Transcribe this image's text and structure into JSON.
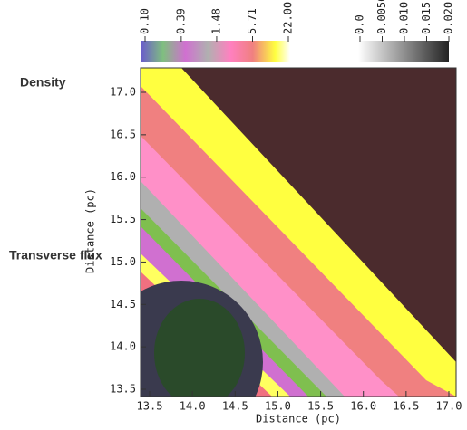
{
  "chart_data": {
    "type": "image",
    "x_label": "Distance (pc)",
    "y_label": "Distance (pc)",
    "side_labels": [
      "Density",
      "Transverse flux"
    ],
    "xlim": [
      13.5,
      17.0
    ],
    "ylim": [
      13.5,
      17.0
    ],
    "xticks": [
      13.5,
      {
        "value": 14,
        "label": "14.0"
      },
      14.5,
      {
        "value": 15,
        "label": "15.0"
      },
      15.5,
      {
        "value": 16,
        "label": "16.0"
      },
      16.5,
      {
        "value": 17,
        "label": "17.0"
      }
    ],
    "yticks": [
      13.5,
      {
        "value": 14,
        "label": "14.0"
      },
      14.5,
      {
        "value": 15,
        "label": "15.0"
      },
      15.5,
      {
        "value": 16,
        "label": "16.0"
      },
      16.5,
      {
        "value": 17,
        "label": "17.0"
      }
    ],
    "colorbars": [
      {
        "log_scale": true,
        "lim": [
          0.1,
          22
        ],
        "ticks": [
          {
            "value": 0.1,
            "label": "0.10"
          },
          0.39,
          1.48,
          5.71,
          {
            "value": 22,
            "label": "22.00"
          }
        ]
      },
      {
        "log_scale": false,
        "lim": [
          0,
          0.02
        ],
        "ticks": [
          {
            "value": 0,
            "label": "0.0"
          },
          {
            "value": 0.005,
            "label": "0.0050"
          },
          {
            "value": 0.01,
            "label": "0.010"
          },
          {
            "value": 0.015,
            "label": "0.015"
          },
          {
            "value": 0.02,
            "label": "0.020"
          }
        ]
      }
    ]
  }
}
